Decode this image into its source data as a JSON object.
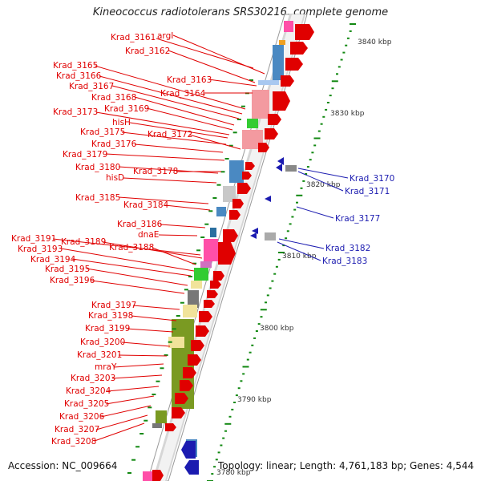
{
  "title": "Kineococcus radiotolerans SRS30216, complete genome",
  "footer": {
    "accession": "Accession: NC_009664",
    "topology": "Topology: linear; Length: 4,761,183 bp; Genes: 4,544"
  },
  "scale_labels": [
    "3840 kbp",
    "3830 kbp",
    "3820 kbp",
    "3810 kbp",
    "3800 kbp",
    "3790 kbp",
    "3780 kbp"
  ],
  "forward_genes": [
    "Krad_3161",
    "argI",
    "Krad_3162",
    "Krad_3163",
    "Krad_3164",
    "Krad_3165",
    "Krad_3166",
    "Krad_3167",
    "Krad_3168",
    "Krad_3169",
    "Krad_3173",
    "hisH",
    "Krad_3172",
    "Krad_3175",
    "Krad_3176",
    "Krad_3179",
    "Krad_3180",
    "Krad_3178",
    "hisD",
    "Krad_3185",
    "Krad_3184",
    "Krad_3186",
    "dnaE",
    "Krad_3191",
    "Krad_3189",
    "Krad_3188",
    "Krad_3193",
    "Krad_3194",
    "Krad_3195",
    "Krad_3196",
    "Krad_3197",
    "Krad_3198",
    "Krad_3199",
    "Krad_3200",
    "Krad_3201",
    "mraY",
    "Krad_3203",
    "Krad_3204",
    "Krad_3205",
    "Krad_3206",
    "Krad_3207",
    "Krad_3208"
  ],
  "reverse_genes": [
    "Krad_3170",
    "Krad_3171",
    "Krad_3177",
    "Krad_3182",
    "Krad_3183"
  ],
  "colors": {
    "forward": "#e00000",
    "reverse": "#1b1bb0",
    "tick": "#118811",
    "blue_block": "#4a89c2",
    "pink_block": "#ff4fa8",
    "light_pink_block": "#f39aa0",
    "olive_block": "#7a9a22",
    "yellow_block": "#f1e39a",
    "gray_block": "#c8c8c8",
    "green_block": "#33cc33"
  }
}
